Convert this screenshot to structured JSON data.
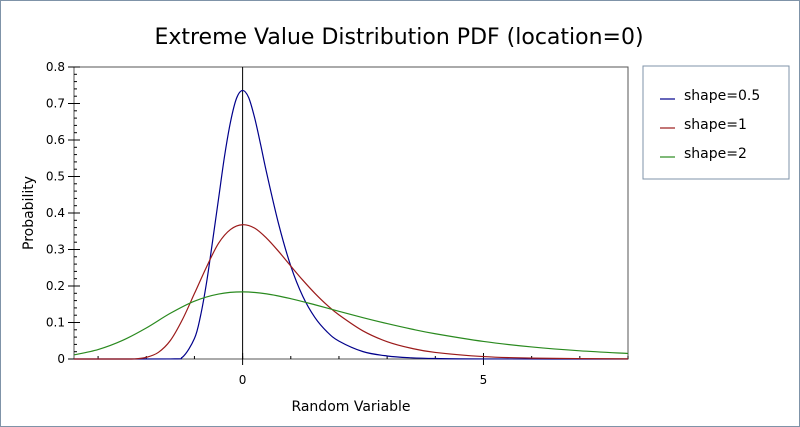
{
  "chart_data": {
    "type": "line",
    "title": "Extreme Value Distribution PDF (location=0)",
    "xlabel": "Random Variable",
    "ylabel": "Probability",
    "xlim": [
      -3.5,
      8
    ],
    "ylim": [
      0,
      0.8
    ],
    "x_ticks": [
      0,
      5
    ],
    "y_ticks": [
      0,
      0.1,
      0.2,
      0.3,
      0.4,
      0.5,
      0.6,
      0.7,
      0.8
    ],
    "y_tick_labels": [
      "0",
      "0.1",
      "0.2",
      "0.3",
      "0.4",
      "0.5",
      "0.6",
      "0.7",
      "0.8"
    ],
    "x_tick_labels": [
      "0",
      "5"
    ],
    "legend_position": "right",
    "series": [
      {
        "name": "shape=0.5",
        "color": "#00008b",
        "x": [
          -3.5,
          -1.5,
          -1.25,
          -1.0,
          -0.875,
          -0.75,
          -0.625,
          -0.5,
          -0.375,
          -0.25,
          -0.125,
          0,
          0.125,
          0.25,
          0.375,
          0.5,
          0.75,
          1.0,
          1.25,
          1.5,
          1.75,
          2.0,
          2.5,
          3.0,
          3.5,
          4.0,
          5.0,
          8.0
        ],
        "y": [
          0,
          0.0001,
          0.0048,
          0.0561,
          0.1173,
          0.208,
          0.3212,
          0.4385,
          0.5556,
          0.6504,
          0.7147,
          0.7358,
          0.7164,
          0.6606,
          0.587,
          0.5092,
          0.3687,
          0.2547,
          0.1716,
          0.1139,
          0.0749,
          0.049,
          0.0202,
          0.0083,
          0.0033,
          0.0013,
          0.0002,
          0
        ]
      },
      {
        "name": "shape=1",
        "color": "#9b1a1a",
        "x": [
          -3.5,
          -2.5,
          -2.25,
          -2.0,
          -1.75,
          -1.5,
          -1.25,
          -1.0,
          -0.75,
          -0.5,
          -0.25,
          0,
          0.25,
          0.5,
          0.75,
          1.0,
          1.25,
          1.5,
          1.75,
          2.0,
          2.5,
          3.0,
          3.5,
          4.0,
          5.0,
          6.0,
          8.0
        ],
        "y": [
          0,
          0.0,
          0.0001,
          0.0045,
          0.018,
          0.0506,
          0.1078,
          0.1793,
          0.2518,
          0.317,
          0.355,
          0.3679,
          0.3585,
          0.3307,
          0.2943,
          0.2546,
          0.2159,
          0.18,
          0.1481,
          0.1209,
          0.0769,
          0.0475,
          0.0294,
          0.018,
          0.0067,
          0.0025,
          0.0003
        ]
      },
      {
        "name": "shape=2",
        "color": "#2a8a1f",
        "x": [
          -3.5,
          -3.0,
          -2.5,
          -2.0,
          -1.5,
          -1.0,
          -0.5,
          0,
          0.5,
          1.0,
          1.5,
          2.0,
          2.5,
          3.0,
          3.5,
          4.0,
          5.0,
          6.0,
          7.0,
          8.0
        ],
        "y": [
          0.0112,
          0.0258,
          0.0504,
          0.0849,
          0.1253,
          0.1585,
          0.178,
          0.1839,
          0.1784,
          0.1653,
          0.1486,
          0.1307,
          0.1133,
          0.097,
          0.0822,
          0.0692,
          0.0481,
          0.033,
          0.0224,
          0.0152
        ]
      }
    ]
  }
}
